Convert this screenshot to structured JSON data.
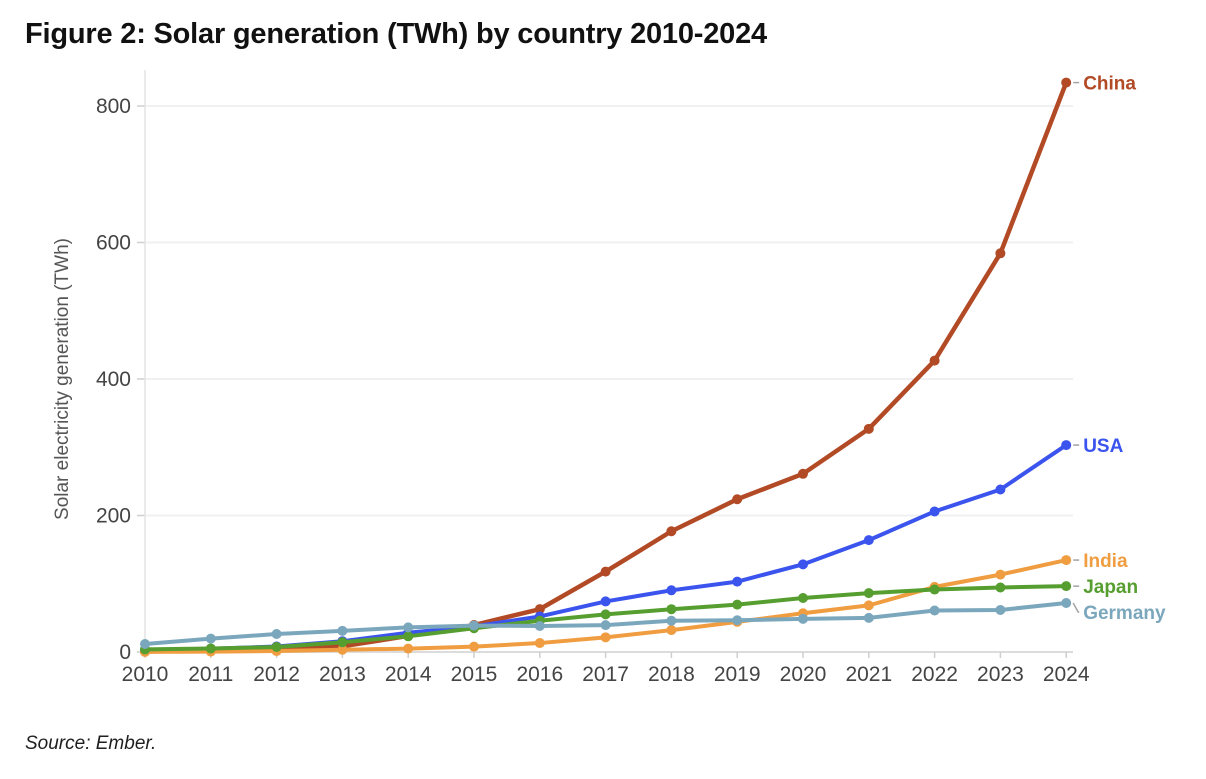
{
  "figure": {
    "title": "Figure 2: Solar generation (TWh) by country 2010-2024",
    "source": "Source: Ember."
  },
  "chart_data": {
    "type": "line",
    "title": "Figure 2: Solar generation (TWh) by country 2010-2024",
    "xlabel": "",
    "ylabel": "Solar electricity generation (TWh)",
    "x": [
      2010,
      2011,
      2012,
      2013,
      2014,
      2015,
      2016,
      2017,
      2018,
      2019,
      2020,
      2021,
      2022,
      2023,
      2024
    ],
    "y_ticks": [
      0,
      200,
      400,
      600,
      800
    ],
    "ylim": [
      0,
      850
    ],
    "grid": "horizontal",
    "legend_position": "end-of-line-labels-right",
    "source": "Source: Ember.",
    "series": [
      {
        "name": "China",
        "color": "#b24a26",
        "values": [
          0.7,
          2.6,
          3.6,
          8.4,
          23.5,
          39.5,
          62.8,
          117.8,
          176.9,
          223.8,
          261.1,
          327.0,
          427.0,
          584.2,
          834.3
        ]
      },
      {
        "name": "USA",
        "color": "#3b54ee",
        "values": [
          3.1,
          4.8,
          8.1,
          15.8,
          28.2,
          37.5,
          52.1,
          74.1,
          90.4,
          103.1,
          128.4,
          163.9,
          205.9,
          238.1,
          303.2
        ]
      },
      {
        "name": "India",
        "color": "#f09d41",
        "values": [
          0.1,
          0.6,
          1.4,
          3.3,
          5.0,
          7.9,
          13.1,
          21.5,
          32.1,
          44.2,
          56.8,
          68.3,
          95.4,
          113.4,
          134.7
        ]
      },
      {
        "name": "Japan",
        "color": "#569e2f",
        "values": [
          3.8,
          5.2,
          7.4,
          14.3,
          23.0,
          34.8,
          45.8,
          55.1,
          62.7,
          69.4,
          79.1,
          86.3,
          91.5,
          94.5,
          96.5
        ]
      },
      {
        "name": "Germany",
        "color": "#7ba7bd",
        "values": [
          11.7,
          19.6,
          26.4,
          31.0,
          36.1,
          38.7,
          38.1,
          39.4,
          45.8,
          46.5,
          48.6,
          50.0,
          60.8,
          61.6,
          71.8
        ]
      }
    ]
  },
  "style_colors": {
    "gridline": "#f0f0f0",
    "baseline": "#dcdcdc",
    "axis_line": "#e4e4e4",
    "tick_mark": "#cfcfcf",
    "tick_label": "#444444",
    "axis_title": "#555555",
    "leader_line": "#a3a3a3"
  }
}
